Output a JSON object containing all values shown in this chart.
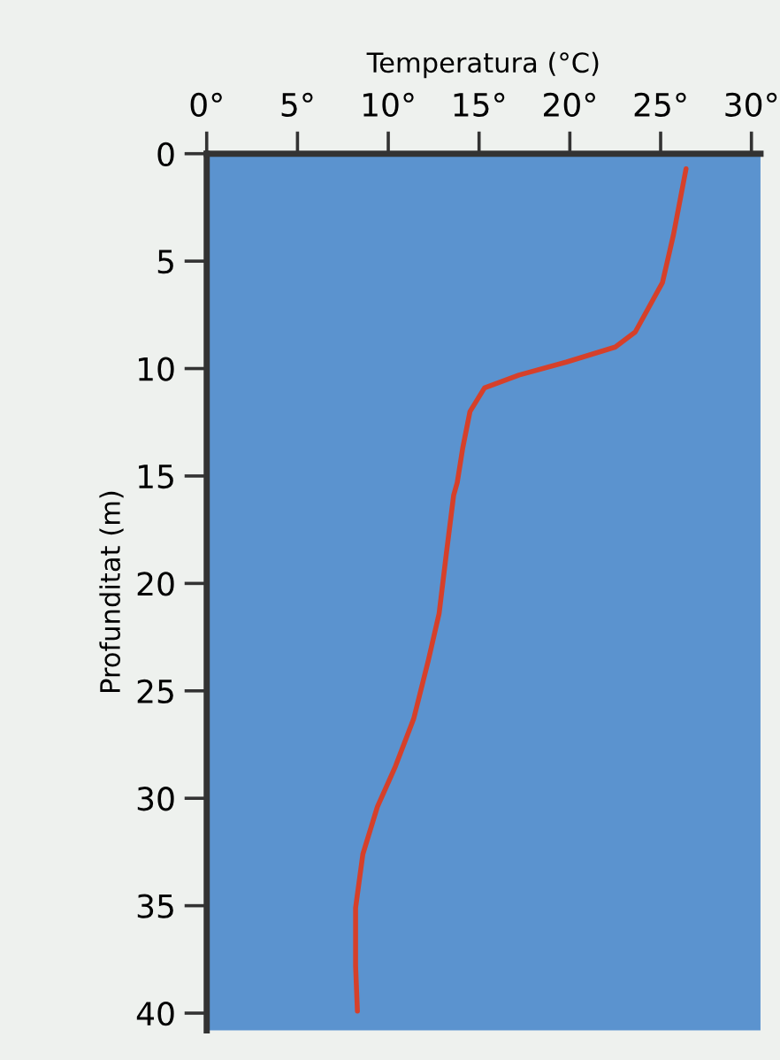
{
  "chart_data": {
    "type": "line",
    "xlabel": "Temperatura (°C)",
    "ylabel": "Profunditat (m)",
    "x": [
      26.4,
      25.7,
      25.1,
      23.6,
      22.5,
      19.8,
      17.2,
      15.3,
      14.5,
      14.1,
      13.8,
      13.6,
      13.2,
      12.8,
      12.2,
      11.4,
      10.4,
      9.4,
      8.6,
      8.2,
      8.2,
      8.3
    ],
    "series": [
      {
        "color": "#d6402a",
        "values": [
          0.7,
          3.8,
          6.0,
          8.3,
          9.0,
          9.7,
          10.3,
          10.9,
          12.0,
          13.7,
          15.3,
          15.9,
          18.6,
          21.4,
          23.6,
          26.3,
          28.5,
          30.4,
          32.6,
          35.1,
          37.8,
          39.9
        ]
      }
    ],
    "xlim": [
      0,
      30.5
    ],
    "ylim": [
      40.8,
      0
    ],
    "xticks": [
      {
        "value": 0,
        "label": "0°"
      },
      {
        "value": 5,
        "label": "5°"
      },
      {
        "value": 10,
        "label": "10°"
      },
      {
        "value": 15,
        "label": "15°"
      },
      {
        "value": 20,
        "label": "20°"
      },
      {
        "value": 25,
        "label": "25°"
      },
      {
        "value": 30,
        "label": "30°"
      }
    ],
    "yticks": [
      0,
      5,
      10,
      15,
      20,
      25,
      30,
      35,
      40
    ],
    "marker": "none",
    "line_style": "solid"
  }
}
